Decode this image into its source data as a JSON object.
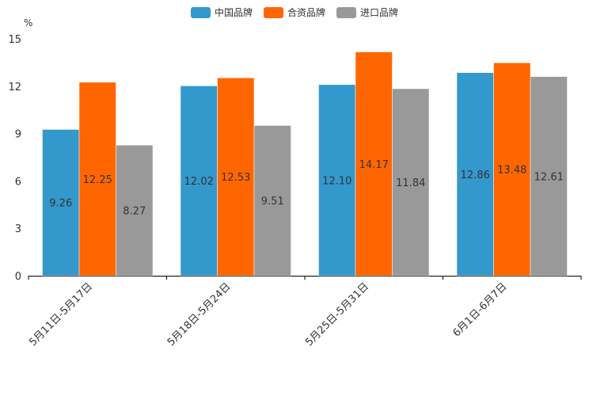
{
  "chart_data": {
    "type": "bar",
    "title": "",
    "unit": "%",
    "xlabel": "",
    "ylabel": "%",
    "ylim": [
      0,
      15
    ],
    "yticks": [
      0,
      3,
      6,
      9,
      12,
      15
    ],
    "categories": [
      "5月11日-5月17日",
      "5月18日-5月24日",
      "5月25日-5月31日",
      "6月1日-6月7日"
    ],
    "series": [
      {
        "name": "中国品牌",
        "color": "#3398cc",
        "values": [
          9.26,
          12.02,
          12.1,
          12.86
        ],
        "labels": [
          "9.26",
          "12.02",
          "12.10",
          "12.86"
        ]
      },
      {
        "name": "合资品牌",
        "color": "#ff6600",
        "values": [
          12.25,
          12.53,
          14.17,
          13.48
        ],
        "labels": [
          "12.25",
          "12.53",
          "14.17",
          "13.48"
        ]
      },
      {
        "name": "进口品牌",
        "color": "#999999",
        "values": [
          8.27,
          9.51,
          11.84,
          12.61
        ],
        "labels": [
          "8.27",
          "9.51",
          "11.84",
          "12.61"
        ]
      }
    ],
    "legend_position": "top-center",
    "grid": false
  }
}
